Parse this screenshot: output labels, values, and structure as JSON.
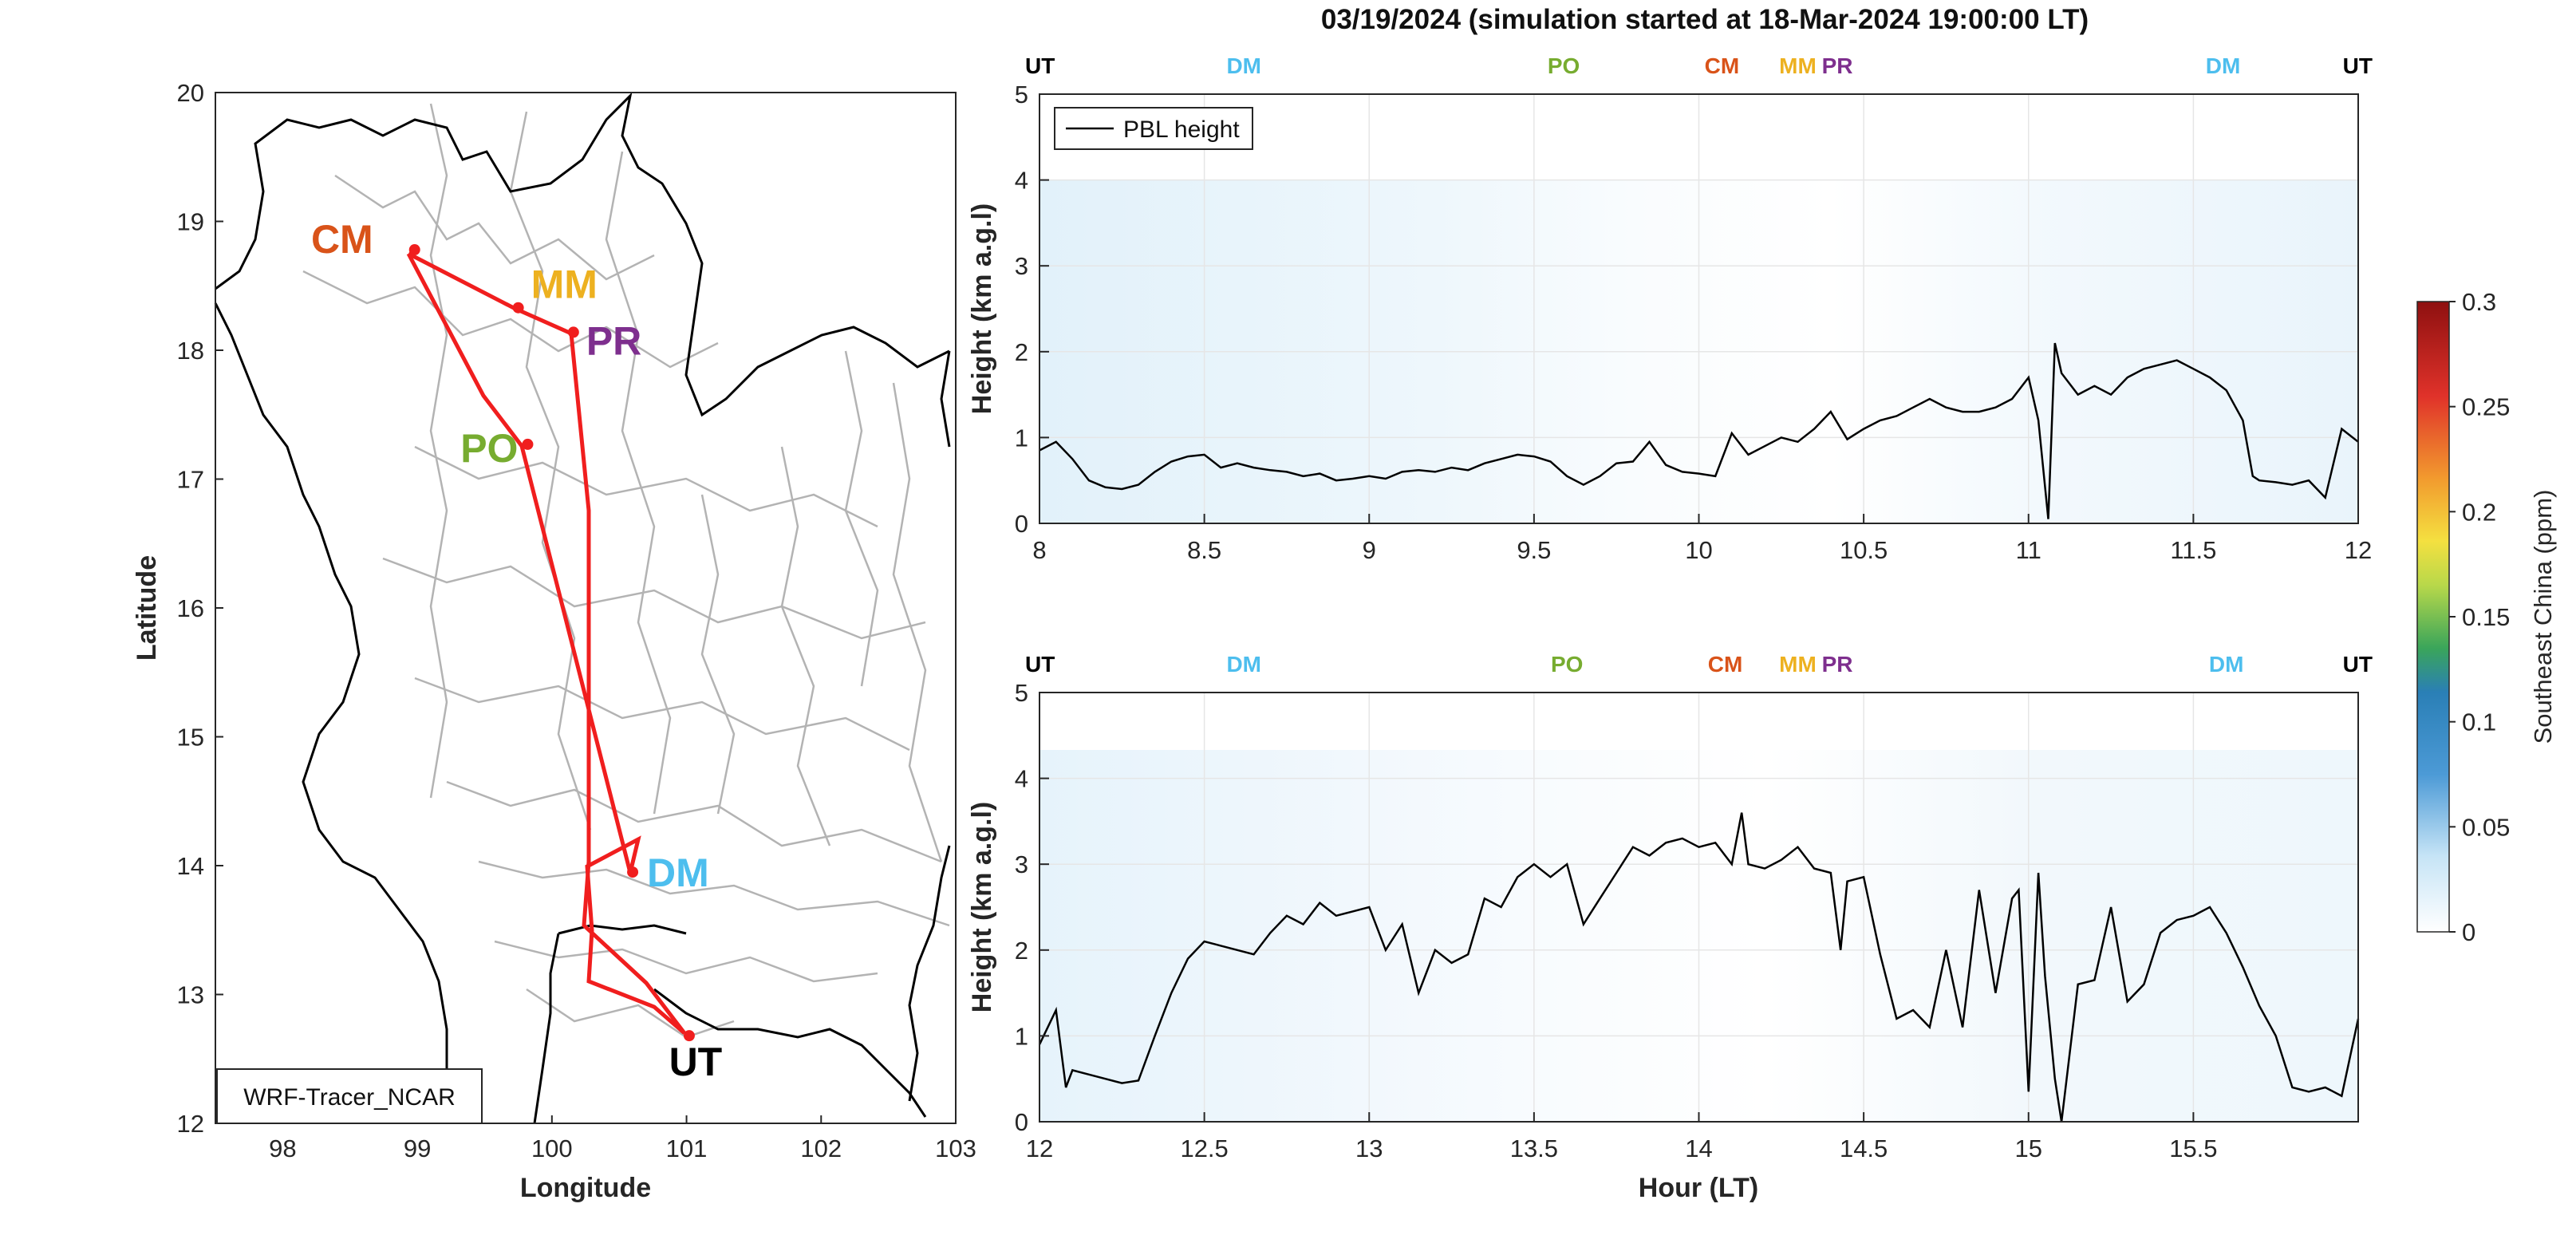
{
  "title": "03/19/2024 (simulation started at 18-Mar-2024 19:00:00 LT)",
  "site_colors": {
    "UT": "#000000",
    "DM": "#4DBEEE",
    "PO": "#77AC30",
    "CM": "#D95319",
    "MM": "#EDB120",
    "PR": "#7E2F8E"
  },
  "route_color": "#F01E1E",
  "map": {
    "xlabel": "Longitude",
    "ylabel": "Latitude",
    "xlim": [
      97.5,
      103
    ],
    "ylim": [
      12,
      20
    ],
    "xticks": [
      "98",
      "99",
      "100",
      "101",
      "102",
      "103"
    ],
    "yticks": [
      "12",
      "13",
      "14",
      "15",
      "16",
      "17",
      "18",
      "19",
      "20"
    ],
    "model_label": "WRF-Tracer_NCAR",
    "sites": [
      {
        "name": "CM",
        "lon": 98.98,
        "lat": 18.78
      },
      {
        "name": "MM",
        "lon": 99.75,
        "lat": 18.33
      },
      {
        "name": "PR",
        "lon": 100.16,
        "lat": 18.14
      },
      {
        "name": "PO",
        "lon": 99.82,
        "lat": 17.27
      },
      {
        "name": "DM",
        "lon": 100.6,
        "lat": 13.95
      },
      {
        "name": "UT",
        "lon": 101.02,
        "lat": 12.68
      }
    ]
  },
  "colorbar": {
    "label": "Southeast China (ppm)",
    "ticks": [
      "0",
      "0.05",
      "0.1",
      "0.15",
      "0.2",
      "0.25",
      "0.3"
    ],
    "range": [
      0,
      0.3
    ]
  },
  "chart_data": [
    {
      "type": "line",
      "panel": "top",
      "xlabel": "",
      "ylabel": "Height (km a.g.l)",
      "xlim": [
        8,
        12
      ],
      "ylim": [
        0,
        5
      ],
      "xticks": [
        "8",
        "8.5",
        "9",
        "9.5",
        "10",
        "10.5",
        "11",
        "11.5",
        "12"
      ],
      "yticks": [
        "0",
        "1",
        "2",
        "3",
        "4",
        "5"
      ],
      "legend": "PBL height",
      "legend_position": "top-left",
      "site_markers": [
        {
          "label": "UT",
          "x": 8.0
        },
        {
          "label": "DM",
          "x": 8.62
        },
        {
          "label": "PO",
          "x": 9.59
        },
        {
          "label": "CM",
          "x": 10.07
        },
        {
          "label": "MM",
          "x": 10.3
        },
        {
          "label": "PR",
          "x": 10.42
        },
        {
          "label": "DM",
          "x": 11.59
        },
        {
          "label": "UT",
          "x": 11.97
        }
      ],
      "series": [
        {
          "name": "PBL height",
          "x": [
            8.0,
            8.05,
            8.1,
            8.15,
            8.2,
            8.25,
            8.3,
            8.35,
            8.4,
            8.45,
            8.5,
            8.55,
            8.6,
            8.65,
            8.7,
            8.75,
            8.8,
            8.85,
            8.9,
            8.95,
            9.0,
            9.05,
            9.1,
            9.15,
            9.2,
            9.25,
            9.3,
            9.35,
            9.4,
            9.45,
            9.5,
            9.55,
            9.6,
            9.65,
            9.7,
            9.75,
            9.8,
            9.85,
            9.9,
            9.95,
            10.0,
            10.05,
            10.1,
            10.15,
            10.2,
            10.25,
            10.3,
            10.35,
            10.4,
            10.45,
            10.5,
            10.55,
            10.6,
            10.65,
            10.7,
            10.75,
            10.8,
            10.85,
            10.9,
            10.95,
            11.0,
            11.03,
            11.06,
            11.08,
            11.1,
            11.15,
            11.2,
            11.25,
            11.3,
            11.35,
            11.4,
            11.45,
            11.5,
            11.55,
            11.6,
            11.65,
            11.68,
            11.7,
            11.75,
            11.8,
            11.85,
            11.9,
            11.95,
            12.0
          ],
          "y": [
            0.85,
            0.95,
            0.75,
            0.5,
            0.42,
            0.4,
            0.45,
            0.6,
            0.72,
            0.78,
            0.8,
            0.65,
            0.7,
            0.65,
            0.62,
            0.6,
            0.55,
            0.58,
            0.5,
            0.52,
            0.55,
            0.52,
            0.6,
            0.62,
            0.6,
            0.65,
            0.62,
            0.7,
            0.75,
            0.8,
            0.78,
            0.72,
            0.55,
            0.45,
            0.55,
            0.7,
            0.72,
            0.95,
            0.68,
            0.6,
            0.58,
            0.55,
            1.05,
            0.8,
            0.9,
            1.0,
            0.95,
            1.1,
            1.3,
            0.98,
            1.1,
            1.2,
            1.25,
            1.35,
            1.45,
            1.35,
            1.3,
            1.3,
            1.35,
            1.45,
            1.7,
            1.2,
            0.05,
            2.1,
            1.75,
            1.5,
            1.6,
            1.5,
            1.7,
            1.8,
            1.85,
            1.9,
            1.8,
            1.7,
            1.55,
            1.2,
            0.55,
            0.5,
            0.48,
            0.45,
            0.5,
            0.3,
            1.1,
            0.95
          ]
        }
      ]
    },
    {
      "type": "line",
      "panel": "bottom",
      "xlabel": "Hour (LT)",
      "ylabel": "Height (km a.g.l)",
      "xlim": [
        12,
        16
      ],
      "ylim": [
        0,
        5
      ],
      "xticks": [
        "12",
        "12.5",
        "13",
        "13.5",
        "14",
        "14.5",
        "15",
        "15.5"
      ],
      "yticks": [
        "0",
        "1",
        "2",
        "3",
        "4",
        "5"
      ],
      "site_markers": [
        {
          "label": "UT",
          "x": 12.0
        },
        {
          "label": "DM",
          "x": 12.62
        },
        {
          "label": "PO",
          "x": 13.6
        },
        {
          "label": "CM",
          "x": 14.08
        },
        {
          "label": "MM",
          "x": 14.3
        },
        {
          "label": "PR",
          "x": 14.42
        },
        {
          "label": "DM",
          "x": 15.6
        },
        {
          "label": "UT",
          "x": 15.97
        }
      ],
      "series": [
        {
          "name": "PBL height",
          "x": [
            12.0,
            12.05,
            12.08,
            12.1,
            12.15,
            12.2,
            12.25,
            12.3,
            12.35,
            12.4,
            12.45,
            12.5,
            12.55,
            12.6,
            12.65,
            12.7,
            12.75,
            12.8,
            12.85,
            12.9,
            12.95,
            13.0,
            13.05,
            13.1,
            13.15,
            13.2,
            13.25,
            13.3,
            13.35,
            13.4,
            13.45,
            13.5,
            13.55,
            13.6,
            13.65,
            13.7,
            13.75,
            13.8,
            13.85,
            13.9,
            13.95,
            14.0,
            14.05,
            14.1,
            14.13,
            14.15,
            14.2,
            14.25,
            14.3,
            14.35,
            14.4,
            14.43,
            14.45,
            14.5,
            14.55,
            14.6,
            14.65,
            14.7,
            14.75,
            14.8,
            14.85,
            14.9,
            14.95,
            14.97,
            15.0,
            15.03,
            15.05,
            15.08,
            15.1,
            15.15,
            15.2,
            15.25,
            15.3,
            15.35,
            15.4,
            15.45,
            15.5,
            15.55,
            15.6,
            15.65,
            15.7,
            15.75,
            15.8,
            15.85,
            15.9,
            15.95,
            16.0
          ],
          "y": [
            0.9,
            1.3,
            0.4,
            0.6,
            0.55,
            0.5,
            0.45,
            0.48,
            1.0,
            1.5,
            1.9,
            2.1,
            2.05,
            2.0,
            1.95,
            2.2,
            2.4,
            2.3,
            2.55,
            2.4,
            2.45,
            2.5,
            2.0,
            2.3,
            1.5,
            2.0,
            1.85,
            1.95,
            2.6,
            2.5,
            2.85,
            3.0,
            2.85,
            3.0,
            2.3,
            2.6,
            2.9,
            3.2,
            3.1,
            3.25,
            3.3,
            3.2,
            3.25,
            3.0,
            3.6,
            3.0,
            2.95,
            3.05,
            3.2,
            2.95,
            2.9,
            2.0,
            2.8,
            2.85,
            1.95,
            1.2,
            1.3,
            1.1,
            2.0,
            1.1,
            2.7,
            1.5,
            2.6,
            2.7,
            0.35,
            2.9,
            1.7,
            0.5,
            0.0,
            1.6,
            1.65,
            2.5,
            1.4,
            1.6,
            2.2,
            2.35,
            2.4,
            2.5,
            2.2,
            1.8,
            1.35,
            1.0,
            0.4,
            0.35,
            0.4,
            0.3,
            1.2
          ]
        }
      ]
    }
  ]
}
